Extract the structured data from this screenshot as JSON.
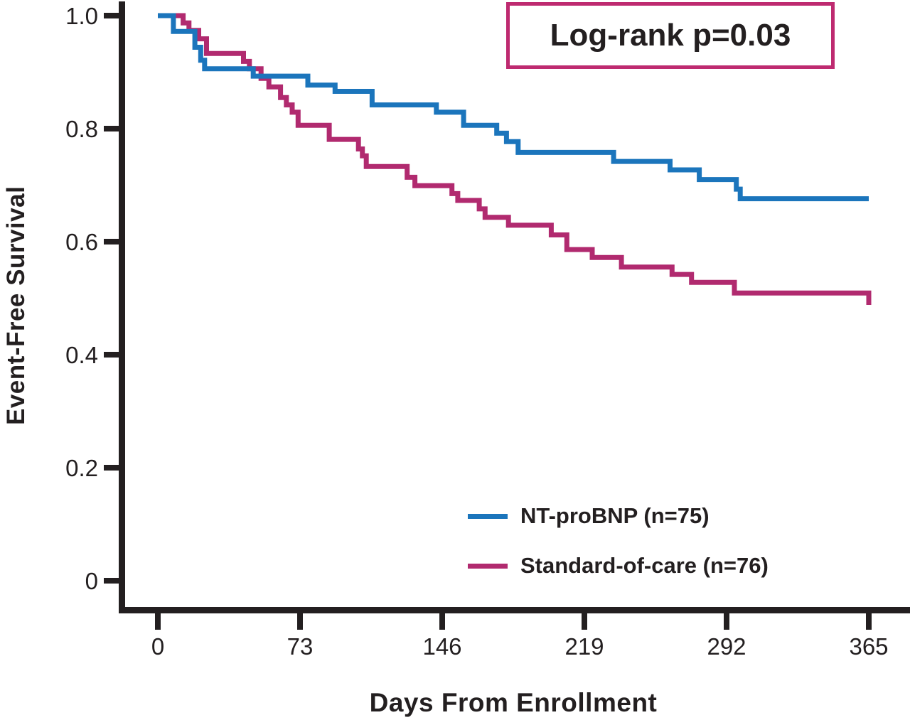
{
  "figure": {
    "annotation_box": {
      "text": "Log-rank p=0.03",
      "border_color": "#be2a70"
    },
    "axis_color": "#231f20"
  },
  "chart_data": {
    "type": "line",
    "subtype": "kaplan-meier-step",
    "title": "",
    "xlabel": "Days From Enrollment",
    "ylabel": "Event-Free Survival",
    "x_ticks": [
      0,
      73,
      146,
      219,
      292,
      365
    ],
    "y_ticks": [
      "1.0",
      "0.8",
      "0.6",
      "0.4",
      "0.2",
      "0"
    ],
    "y_tick_values": [
      1.0,
      0.8,
      0.6,
      0.4,
      0.2,
      0
    ],
    "xlim": [
      0,
      388
    ],
    "ylim": [
      0,
      1.04
    ],
    "grid": false,
    "legend_position": "lower right",
    "annotation": "Log-rank p=0.03",
    "series": [
      {
        "name": "NT-proBNP (n=75)",
        "color": "#1b75bc",
        "points": [
          [
            0,
            1.0
          ],
          [
            8,
            0.972
          ],
          [
            19,
            0.944
          ],
          [
            22,
            0.921
          ],
          [
            24,
            0.906
          ],
          [
            49,
            0.893
          ],
          [
            77,
            0.877
          ],
          [
            91,
            0.866
          ],
          [
            110,
            0.842
          ],
          [
            143,
            0.829
          ],
          [
            157,
            0.806
          ],
          [
            174,
            0.792
          ],
          [
            179,
            0.777
          ],
          [
            185,
            0.758
          ],
          [
            234,
            0.742
          ],
          [
            263,
            0.727
          ],
          [
            278,
            0.71
          ],
          [
            297,
            0.693
          ],
          [
            299,
            0.676
          ],
          [
            365,
            0.676
          ]
        ]
      },
      {
        "name": "Standard-of-care (n=76)",
        "color": "#b12a6f",
        "points": [
          [
            0,
            1.0
          ],
          [
            13,
            0.987
          ],
          [
            16,
            0.974
          ],
          [
            21,
            0.959
          ],
          [
            25,
            0.933
          ],
          [
            44,
            0.919
          ],
          [
            47,
            0.906
          ],
          [
            53,
            0.889
          ],
          [
            57,
            0.874
          ],
          [
            63,
            0.855
          ],
          [
            66,
            0.842
          ],
          [
            69,
            0.829
          ],
          [
            72,
            0.806
          ],
          [
            88,
            0.781
          ],
          [
            103,
            0.764
          ],
          [
            105,
            0.752
          ],
          [
            107,
            0.733
          ],
          [
            128,
            0.714
          ],
          [
            132,
            0.699
          ],
          [
            151,
            0.685
          ],
          [
            154,
            0.673
          ],
          [
            165,
            0.658
          ],
          [
            168,
            0.643
          ],
          [
            180,
            0.629
          ],
          [
            202,
            0.612
          ],
          [
            210,
            0.586
          ],
          [
            223,
            0.572
          ],
          [
            238,
            0.555
          ],
          [
            264,
            0.542
          ],
          [
            274,
            0.528
          ],
          [
            296,
            0.509
          ],
          [
            365,
            0.488
          ]
        ]
      }
    ]
  }
}
